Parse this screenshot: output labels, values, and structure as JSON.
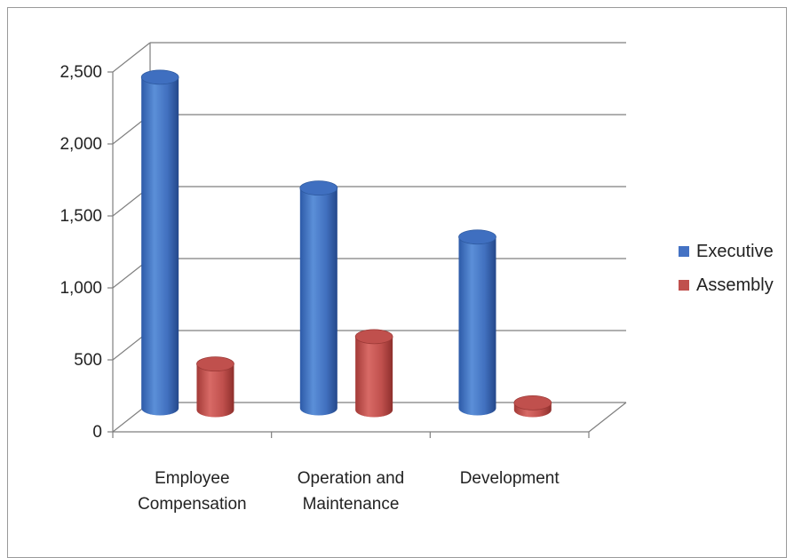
{
  "chart_data": {
    "type": "bar",
    "title": "",
    "xlabel": "",
    "ylabel": "",
    "categories": [
      [
        "Employee",
        "Compensation"
      ],
      [
        "Operation and",
        "Maintenance"
      ],
      [
        "Development"
      ]
    ],
    "series": [
      {
        "name": "Executive",
        "color": "#4472c4",
        "values": [
          2300,
          1530,
          1190
        ]
      },
      {
        "name": "Assembly",
        "color": "#c0504d",
        "values": [
          320,
          510,
          50
        ]
      }
    ],
    "ylim": [
      0,
      2500
    ],
    "yticks": [
      0,
      500,
      1000,
      1500,
      2000,
      2500
    ],
    "ytick_labels": [
      "0",
      "500",
      "1,000",
      "1,500",
      "2,000",
      "2,500"
    ],
    "grid": true,
    "legend_position": "right",
    "style": "3d-cylinder"
  }
}
